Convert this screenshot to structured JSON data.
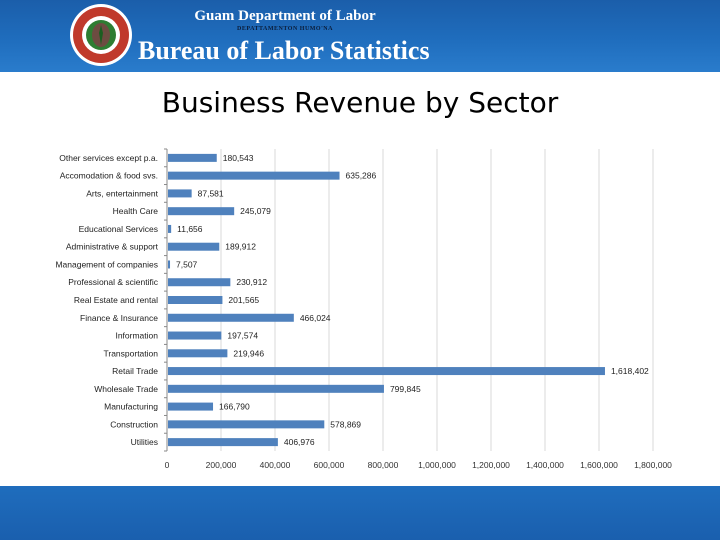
{
  "header": {
    "department": "Guam Department of Labor",
    "department_sub": "DEPATTAMENTON HUMO'NA",
    "bureau": "Bureau of Labor Statistics",
    "seal_text": "DEPARTMENT OF LABOR"
  },
  "title": "Business Revenue by Sector",
  "colors": {
    "bar": "#4f81bd",
    "header": "#1f6dbd",
    "grid": "#d9d9d9"
  },
  "chart_data": {
    "type": "bar",
    "orientation": "horizontal",
    "categories": [
      "Other services except p.a.",
      "Accomodation & food svs.",
      "Arts, entertainment",
      "Health Care",
      "Educational Services",
      "Administrative & support",
      "Management of companies",
      "Professional & scientific",
      "Real Estate and rental",
      "Finance & Insurance",
      "Information",
      "Transportation",
      "Retail Trade",
      "Wholesale Trade",
      "Manufacturing",
      "Construction",
      "Utilities"
    ],
    "values": [
      180543,
      635286,
      87581,
      245079,
      11656,
      189912,
      7507,
      230912,
      201565,
      466024,
      197574,
      219946,
      1618402,
      799845,
      166790,
      578869,
      406976
    ],
    "value_labels": [
      "180,543",
      "635,286",
      "87,581",
      "245,079",
      "11,656",
      "189,912",
      "7,507",
      "230,912",
      "201,565",
      "466,024",
      "197,574",
      "219,946",
      "1,618,402",
      "799,845",
      "166,790",
      "578,869",
      "406,976"
    ],
    "xlim": [
      0,
      1800000
    ],
    "x_ticks": [
      0,
      200000,
      400000,
      600000,
      800000,
      1000000,
      1200000,
      1400000,
      1600000,
      1800000
    ],
    "x_tick_labels": [
      "0",
      "200,000",
      "400,000",
      "600,000",
      "800,000",
      "1,000,000",
      "1,200,000",
      "1,400,000",
      "1,600,000",
      "1,800,000"
    ],
    "grid": true,
    "title": "",
    "xlabel": "",
    "ylabel": ""
  }
}
